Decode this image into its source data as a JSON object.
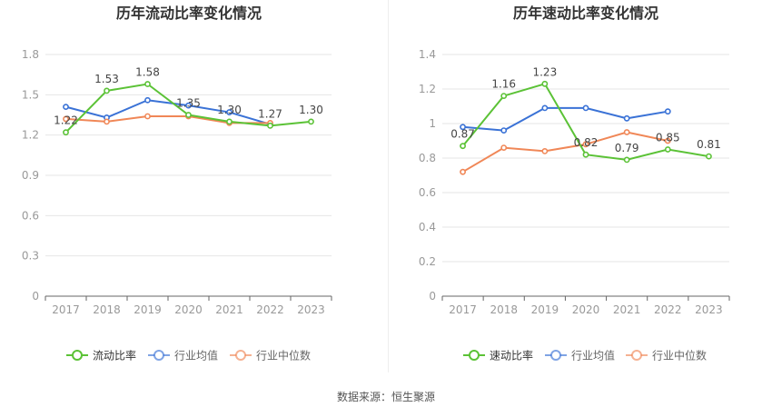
{
  "source": "数据来源：恒生聚源",
  "colors": {
    "main": "#5bc236",
    "avg": "#3a72d6",
    "median": "#f08757",
    "grid": "#e6e6e6",
    "axis": "#666666",
    "tick": "#999999",
    "label": "#444444"
  },
  "chart_data": [
    {
      "type": "line",
      "title": "历年流动比率变化情况",
      "categories": [
        "2017",
        "2018",
        "2019",
        "2020",
        "2021",
        "2022",
        "2023"
      ],
      "yticks": [
        "0",
        "0.3",
        "0.6",
        "0.9",
        "1.2",
        "1.5",
        "1.8"
      ],
      "ylim": [
        0,
        1.8
      ],
      "grid": true,
      "legend": "bottom",
      "series": [
        {
          "name": "流动比率",
          "values": [
            1.22,
            1.53,
            1.58,
            1.35,
            1.3,
            1.27,
            1.3
          ],
          "labels": [
            "1.22",
            "1.53",
            "1.58",
            "1.35",
            "1.30",
            "1.27",
            "1.30"
          ]
        },
        {
          "name": "行业均值",
          "values": [
            1.41,
            1.33,
            1.46,
            1.42,
            1.37,
            1.28,
            null
          ]
        },
        {
          "name": "行业中位数",
          "values": [
            1.32,
            1.3,
            1.34,
            1.34,
            1.29,
            1.29,
            null
          ]
        }
      ]
    },
    {
      "type": "line",
      "title": "历年速动比率变化情况",
      "categories": [
        "2017",
        "2018",
        "2019",
        "2020",
        "2021",
        "2022",
        "2023"
      ],
      "yticks": [
        "0",
        "0.2",
        "0.4",
        "0.6",
        "0.8",
        "1",
        "1.2",
        "1.4"
      ],
      "ylim": [
        0,
        1.4
      ],
      "grid": true,
      "legend": "bottom",
      "series": [
        {
          "name": "速动比率",
          "values": [
            0.87,
            1.16,
            1.23,
            0.82,
            0.79,
            0.85,
            0.81
          ],
          "labels": [
            "0.87",
            "1.16",
            "1.23",
            "0.82",
            "0.79",
            "0.85",
            "0.81"
          ]
        },
        {
          "name": "行业均值",
          "values": [
            0.98,
            0.96,
            1.09,
            1.09,
            1.03,
            1.07,
            null
          ]
        },
        {
          "name": "行业中位数",
          "values": [
            0.72,
            0.86,
            0.84,
            0.88,
            0.95,
            0.9,
            null
          ]
        }
      ]
    }
  ]
}
